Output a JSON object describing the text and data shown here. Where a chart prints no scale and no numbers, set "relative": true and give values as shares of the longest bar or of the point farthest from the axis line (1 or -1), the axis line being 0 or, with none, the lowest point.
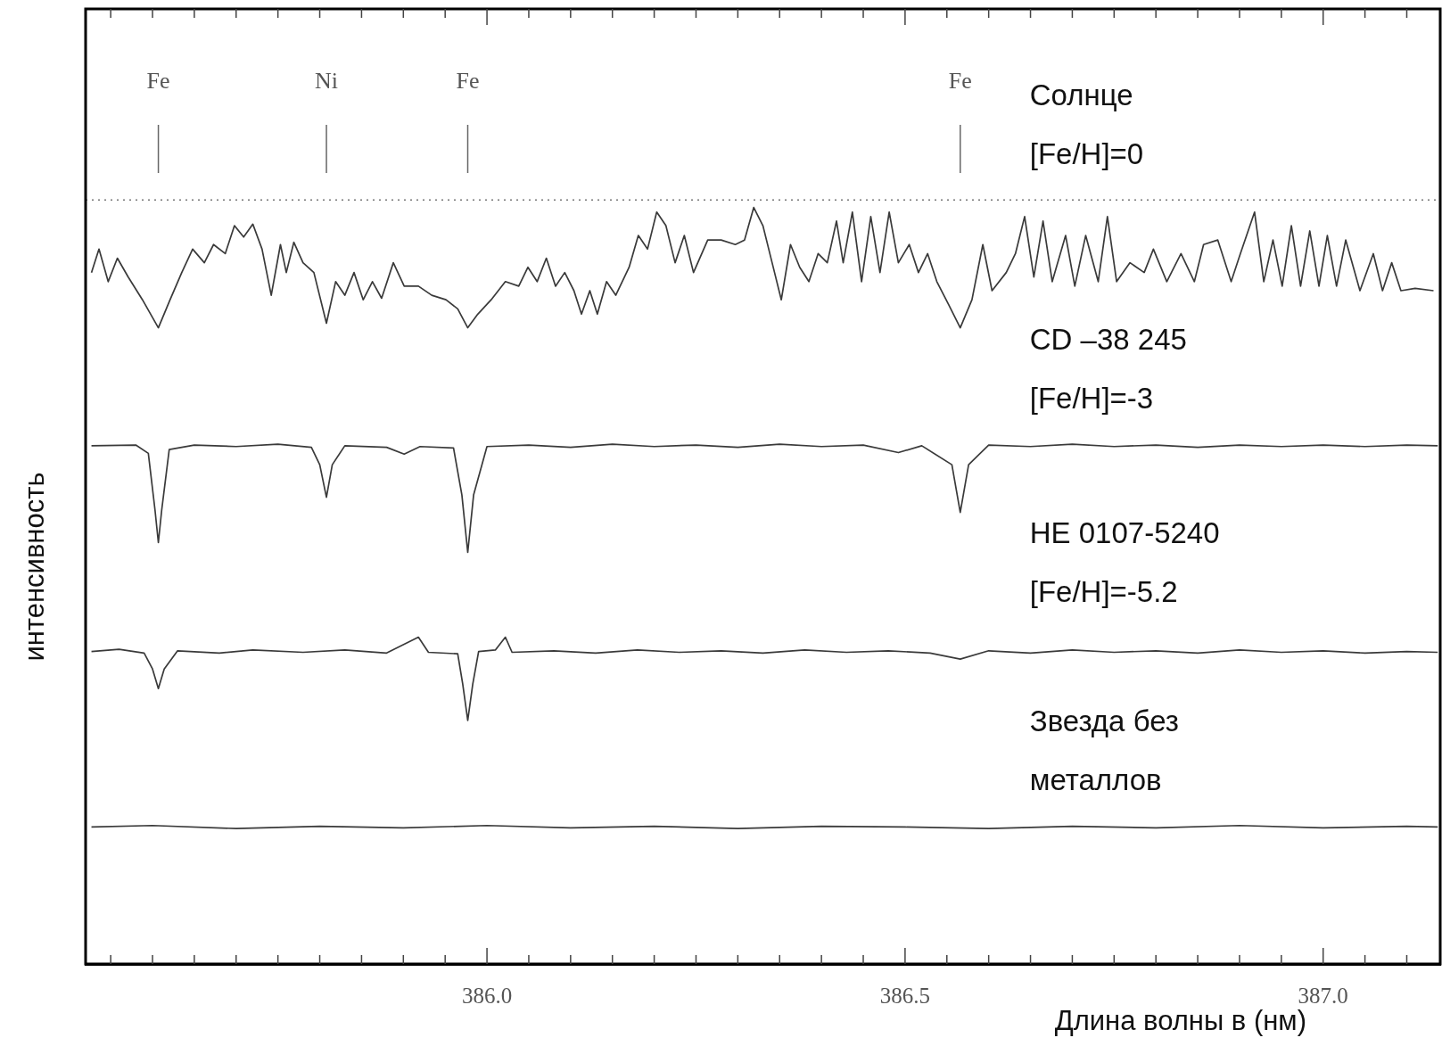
{
  "chart_data": {
    "type": "line",
    "relative": true,
    "grid": false,
    "tick_labels": "x",
    "xlabel": "Длина волны в (нм)",
    "ylabel": "интенсивность",
    "xlim": [
      385.52,
      387.14
    ],
    "xticks": [
      {
        "value": 385.55,
        "label": null
      },
      {
        "value": 385.6,
        "label": null
      },
      {
        "value": 385.65,
        "label": null
      },
      {
        "value": 385.7,
        "label": null
      },
      {
        "value": 385.75,
        "label": null
      },
      {
        "value": 385.8,
        "label": null
      },
      {
        "value": 385.85,
        "label": null
      },
      {
        "value": 385.9,
        "label": null
      },
      {
        "value": 385.95,
        "label": null
      },
      {
        "value": 386,
        "label": "386.0"
      },
      {
        "value": 386.05,
        "label": null
      },
      {
        "value": 386.1,
        "label": null
      },
      {
        "value": 386.15,
        "label": null
      },
      {
        "value": 386.2,
        "label": null
      },
      {
        "value": 386.25,
        "label": null
      },
      {
        "value": 386.3,
        "label": null
      },
      {
        "value": 386.35,
        "label": null
      },
      {
        "value": 386.4,
        "label": null
      },
      {
        "value": 386.45,
        "label": null
      },
      {
        "value": 386.5,
        "label": "386.5"
      },
      {
        "value": 386.55,
        "label": null
      },
      {
        "value": 386.6,
        "label": null
      },
      {
        "value": 386.65,
        "label": null
      },
      {
        "value": 386.7,
        "label": null
      },
      {
        "value": 386.75,
        "label": null
      },
      {
        "value": 386.8,
        "label": null
      },
      {
        "value": 386.85,
        "label": null
      },
      {
        "value": 386.9,
        "label": null
      },
      {
        "value": 386.95,
        "label": null
      },
      {
        "value": 387,
        "label": "387.0"
      },
      {
        "value": 387.05,
        "label": null
      },
      {
        "value": 387.1,
        "label": null
      }
    ],
    "ref_lines": [
      {
        "axis": "y",
        "value": 1.01,
        "line_style": "dotted",
        "color": "#777777"
      },
      {
        "axis": "x",
        "value": 385.607,
        "label": "Fe",
        "color": "#666666"
      },
      {
        "axis": "x",
        "value": 385.808,
        "label": "Ni",
        "color": "#666666"
      },
      {
        "axis": "x",
        "value": 385.977,
        "label": "Fe",
        "color": "#666666"
      },
      {
        "axis": "x",
        "value": 386.566,
        "label": "Fe",
        "color": "#666666"
      }
    ],
    "series": [
      {
        "name": "Солнце [Fe/H]=0",
        "color": "#3a3a3a",
        "x": [
          385.527,
          385.536,
          385.547,
          385.558,
          385.571,
          385.588,
          385.607,
          385.621,
          385.635,
          385.648,
          385.662,
          385.673,
          385.687,
          385.698,
          385.709,
          385.72,
          385.731,
          385.742,
          385.753,
          385.76,
          385.769,
          385.78,
          385.793,
          385.808,
          385.819,
          385.83,
          385.841,
          385.852,
          385.863,
          385.874,
          385.888,
          385.901,
          385.918,
          385.934,
          385.951,
          385.965,
          385.977,
          385.989,
          386.005,
          386.022,
          386.038,
          386.049,
          386.06,
          386.071,
          386.082,
          386.093,
          386.104,
          386.113,
          386.123,
          386.132,
          386.143,
          386.154,
          386.17,
          386.181,
          386.192,
          386.203,
          386.214,
          386.225,
          386.236,
          386.247,
          386.264,
          386.28,
          386.297,
          386.308,
          386.319,
          386.33,
          386.341,
          386.352,
          386.363,
          386.374,
          386.385,
          386.396,
          386.407,
          386.418,
          386.426,
          386.437,
          386.448,
          386.459,
          386.47,
          386.481,
          386.492,
          386.505,
          386.516,
          386.527,
          386.538,
          386.552,
          386.566,
          386.58,
          386.593,
          386.604,
          386.621,
          386.632,
          386.643,
          386.654,
          386.665,
          386.676,
          386.692,
          386.703,
          386.716,
          386.731,
          386.742,
          386.753,
          386.769,
          386.786,
          386.797,
          386.813,
          386.83,
          386.846,
          386.857,
          386.874,
          386.89,
          386.901,
          386.918,
          386.929,
          386.94,
          386.951,
          386.962,
          386.973,
          386.984,
          386.995,
          387.005,
          387.016,
          387.027,
          387.044,
          387.06,
          387.071,
          387.082,
          387.093,
          387.11,
          387.132
        ],
        "values": [
          0.914,
          0.945,
          0.902,
          0.933,
          0.908,
          0.878,
          0.841,
          0.878,
          0.914,
          0.945,
          0.927,
          0.951,
          0.939,
          0.976,
          0.961,
          0.978,
          0.945,
          0.884,
          0.951,
          0.914,
          0.954,
          0.927,
          0.914,
          0.847,
          0.902,
          0.884,
          0.914,
          0.878,
          0.902,
          0.88,
          0.927,
          0.896,
          0.896,
          0.884,
          0.878,
          0.866,
          0.841,
          0.859,
          0.878,
          0.902,
          0.896,
          0.921,
          0.902,
          0.933,
          0.896,
          0.914,
          0.89,
          0.859,
          0.89,
          0.859,
          0.902,
          0.884,
          0.921,
          0.963,
          0.945,
          0.994,
          0.976,
          0.927,
          0.963,
          0.914,
          0.957,
          0.957,
          0.951,
          0.957,
          1,
          0.976,
          0.927,
          0.878,
          0.951,
          0.921,
          0.902,
          0.939,
          0.927,
          0.982,
          0.927,
          0.994,
          0.902,
          0.988,
          0.914,
          0.994,
          0.927,
          0.951,
          0.914,
          0.939,
          0.902,
          0.872,
          0.841,
          0.878,
          0.951,
          0.89,
          0.914,
          0.939,
          0.988,
          0.908,
          0.982,
          0.902,
          0.963,
          0.896,
          0.963,
          0.902,
          0.988,
          0.902,
          0.927,
          0.914,
          0.945,
          0.902,
          0.939,
          0.902,
          0.951,
          0.957,
          0.902,
          0.939,
          0.994,
          0.902,
          0.957,
          0.896,
          0.976,
          0.896,
          0.969,
          0.896,
          0.963,
          0.896,
          0.957,
          0.89,
          0.939,
          0.89,
          0.927,
          0.89,
          0.893,
          0.89
        ]
      },
      {
        "name": "CD –38 245 [Fe/H]=-3",
        "color": "#3a3a3a",
        "x": [
          385.527,
          385.58,
          385.595,
          385.603,
          385.607,
          385.611,
          385.62,
          385.65,
          385.7,
          385.75,
          385.79,
          385.8,
          385.808,
          385.815,
          385.83,
          385.88,
          385.901,
          385.92,
          385.96,
          385.97,
          385.977,
          385.984,
          386,
          386.05,
          386.1,
          386.15,
          386.2,
          386.25,
          386.3,
          386.35,
          386.4,
          386.45,
          386.492,
          386.52,
          386.556,
          386.566,
          386.576,
          386.6,
          386.65,
          386.7,
          386.75,
          386.8,
          386.85,
          386.9,
          386.95,
          387,
          387.05,
          387.1,
          387.137
        ],
        "values": [
          0.685,
          0.686,
          0.675,
          0.6,
          0.557,
          0.6,
          0.68,
          0.686,
          0.684,
          0.687,
          0.683,
          0.66,
          0.617,
          0.66,
          0.685,
          0.683,
          0.674,
          0.684,
          0.682,
          0.62,
          0.544,
          0.62,
          0.684,
          0.686,
          0.683,
          0.687,
          0.684,
          0.686,
          0.683,
          0.687,
          0.684,
          0.686,
          0.676,
          0.685,
          0.66,
          0.597,
          0.66,
          0.686,
          0.684,
          0.687,
          0.684,
          0.686,
          0.683,
          0.686,
          0.684,
          0.686,
          0.684,
          0.686,
          0.685
        ]
      },
      {
        "name": "HE 0107-5240 [Fe/H]=-5.2",
        "color": "#3a3a3a",
        "x": [
          385.527,
          385.56,
          385.59,
          385.6,
          385.607,
          385.614,
          385.63,
          385.68,
          385.72,
          385.78,
          385.83,
          385.88,
          385.918,
          385.93,
          385.965,
          385.971,
          385.977,
          385.983,
          385.99,
          386.01,
          386.022,
          386.03,
          386.08,
          386.13,
          386.18,
          386.23,
          386.28,
          386.33,
          386.38,
          386.43,
          386.48,
          386.53,
          386.566,
          386.6,
          386.65,
          386.7,
          386.75,
          386.8,
          386.85,
          386.9,
          386.95,
          387,
          387.05,
          387.1,
          387.137
        ],
        "values": [
          0.413,
          0.416,
          0.411,
          0.39,
          0.364,
          0.39,
          0.414,
          0.411,
          0.415,
          0.412,
          0.415,
          0.411,
          0.432,
          0.412,
          0.41,
          0.37,
          0.322,
          0.37,
          0.413,
          0.415,
          0.432,
          0.412,
          0.414,
          0.411,
          0.415,
          0.412,
          0.414,
          0.411,
          0.415,
          0.412,
          0.414,
          0.411,
          0.403,
          0.414,
          0.411,
          0.415,
          0.412,
          0.414,
          0.411,
          0.415,
          0.412,
          0.414,
          0.411,
          0.413,
          0.412
        ]
      },
      {
        "name": "Звезда без металлов",
        "color": "#3a3a3a",
        "x": [
          385.527,
          385.6,
          385.7,
          385.8,
          385.9,
          386,
          386.1,
          386.2,
          386.3,
          386.4,
          386.5,
          386.6,
          386.7,
          386.8,
          386.9,
          387,
          387.1,
          387.137
        ],
        "values": [
          0.181,
          0.183,
          0.179,
          0.182,
          0.18,
          0.183,
          0.18,
          0.182,
          0.179,
          0.182,
          0.181,
          0.179,
          0.182,
          0.18,
          0.183,
          0.18,
          0.182,
          0.181
        ]
      }
    ]
  }
}
